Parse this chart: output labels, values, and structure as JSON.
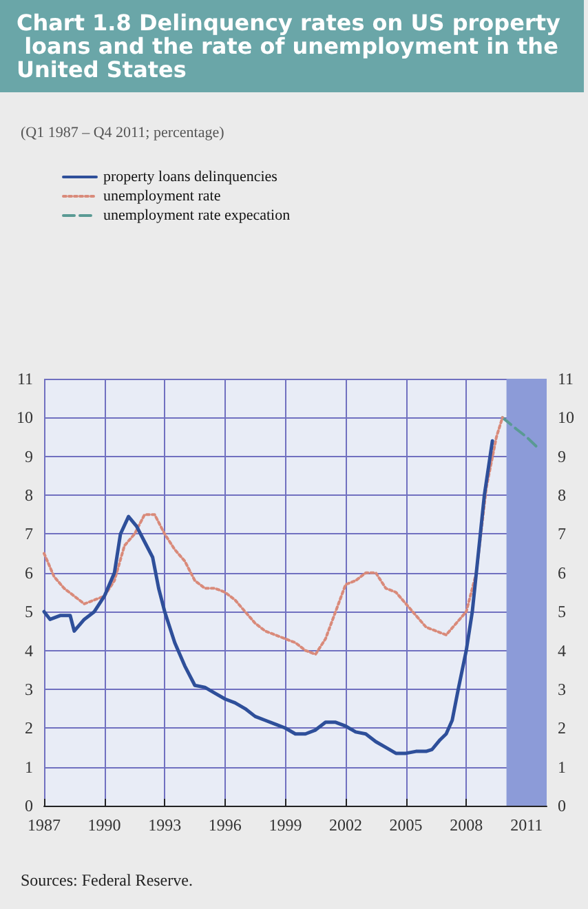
{
  "chart_data": {
    "type": "line",
    "title": "Chart 1.8 Delinquency rates on US property loans and the rate of unemployment in the United States",
    "subtitle": "(Q1 1987 – Q4 2011; percentage)",
    "annotations": [
      "Sources: Federal Reserve."
    ],
    "xlim": [
      1987,
      2012
    ],
    "xticks": [
      1987,
      1990,
      1993,
      1996,
      1999,
      2002,
      2005,
      2008,
      2011
    ],
    "ylim": [
      0,
      11
    ],
    "yticks": [
      0,
      1,
      2,
      3,
      4,
      5,
      6,
      7,
      8,
      9,
      10,
      11
    ],
    "y2lim": [
      0,
      11
    ],
    "y2ticks": [
      0,
      1,
      2,
      3,
      4,
      5,
      6,
      7,
      8,
      9,
      10,
      11
    ],
    "grid": true,
    "legend": "top left",
    "marker": "none",
    "bands": [
      {
        "axis": "x",
        "from": 2010,
        "to": 2012,
        "color": "#8c9bd8"
      }
    ],
    "series": [
      {
        "name": "property loans delinquencies",
        "color": "#2e4f9a",
        "line_style": "solid",
        "x": [
          1987,
          1987.3,
          1987.8,
          1988.3,
          1988.5,
          1989,
          1989.5,
          1990,
          1990.5,
          1990.8,
          1991.2,
          1991.6,
          1992,
          1992.4,
          1992.7,
          1993,
          1993.5,
          1994,
          1994.5,
          1995,
          1995.5,
          1996,
          1996.5,
          1997,
          1997.5,
          1998,
          1998.5,
          1999,
          1999.5,
          2000,
          2000.5,
          2001,
          2001.5,
          2002,
          2002.5,
          2003,
          2003.5,
          2004,
          2004.5,
          2005,
          2005.5,
          2006,
          2006.3,
          2006.7,
          2007,
          2007.3,
          2007.6,
          2008,
          2008.3,
          2008.6,
          2008.9,
          2009.3
        ],
        "values": [
          5.0,
          4.8,
          4.9,
          4.9,
          4.5,
          4.8,
          5.0,
          5.4,
          6.0,
          7.0,
          7.45,
          7.2,
          6.8,
          6.4,
          5.6,
          5.0,
          4.2,
          3.6,
          3.1,
          3.05,
          2.9,
          2.75,
          2.65,
          2.5,
          2.3,
          2.2,
          2.1,
          2.0,
          1.85,
          1.85,
          1.95,
          2.15,
          2.15,
          2.05,
          1.9,
          1.85,
          1.65,
          1.5,
          1.35,
          1.35,
          1.4,
          1.4,
          1.45,
          1.7,
          1.85,
          2.2,
          3.0,
          4.0,
          5.0,
          6.5,
          8.0,
          9.4
        ]
      },
      {
        "name": "unemployment rate",
        "color": "#d98a7a",
        "line_style": "dotted",
        "x": [
          1987,
          1987.5,
          1988,
          1988.5,
          1989,
          1989.5,
          1990,
          1990.5,
          1991,
          1991.5,
          1992,
          1992.5,
          1993,
          1993.5,
          1994,
          1994.5,
          1995,
          1995.5,
          1996,
          1996.5,
          1997,
          1997.5,
          1998,
          1998.5,
          1999,
          1999.5,
          2000,
          2000.5,
          2001,
          2001.5,
          2002,
          2002.5,
          2003,
          2003.5,
          2004,
          2004.5,
          2005,
          2005.5,
          2006,
          2006.5,
          2007,
          2007.5,
          2008,
          2008.5,
          2009,
          2009.5,
          2009.8
        ],
        "values": [
          6.5,
          5.9,
          5.6,
          5.4,
          5.2,
          5.3,
          5.4,
          5.8,
          6.7,
          7.0,
          7.5,
          7.5,
          7.0,
          6.6,
          6.3,
          5.8,
          5.6,
          5.6,
          5.5,
          5.3,
          5.0,
          4.7,
          4.5,
          4.4,
          4.3,
          4.2,
          4.0,
          3.9,
          4.3,
          5.0,
          5.7,
          5.8,
          6.0,
          6.0,
          5.6,
          5.5,
          5.2,
          4.9,
          4.6,
          4.5,
          4.4,
          4.7,
          5.0,
          6.0,
          8.2,
          9.5,
          10.0
        ]
      },
      {
        "name": "unemployment rate expecation",
        "color": "#5a9a94",
        "line_style": "dashed",
        "x": [
          2009.8,
          2010.5,
          2011,
          2011.6
        ],
        "values": [
          10.0,
          9.7,
          9.5,
          9.2
        ]
      }
    ]
  }
}
